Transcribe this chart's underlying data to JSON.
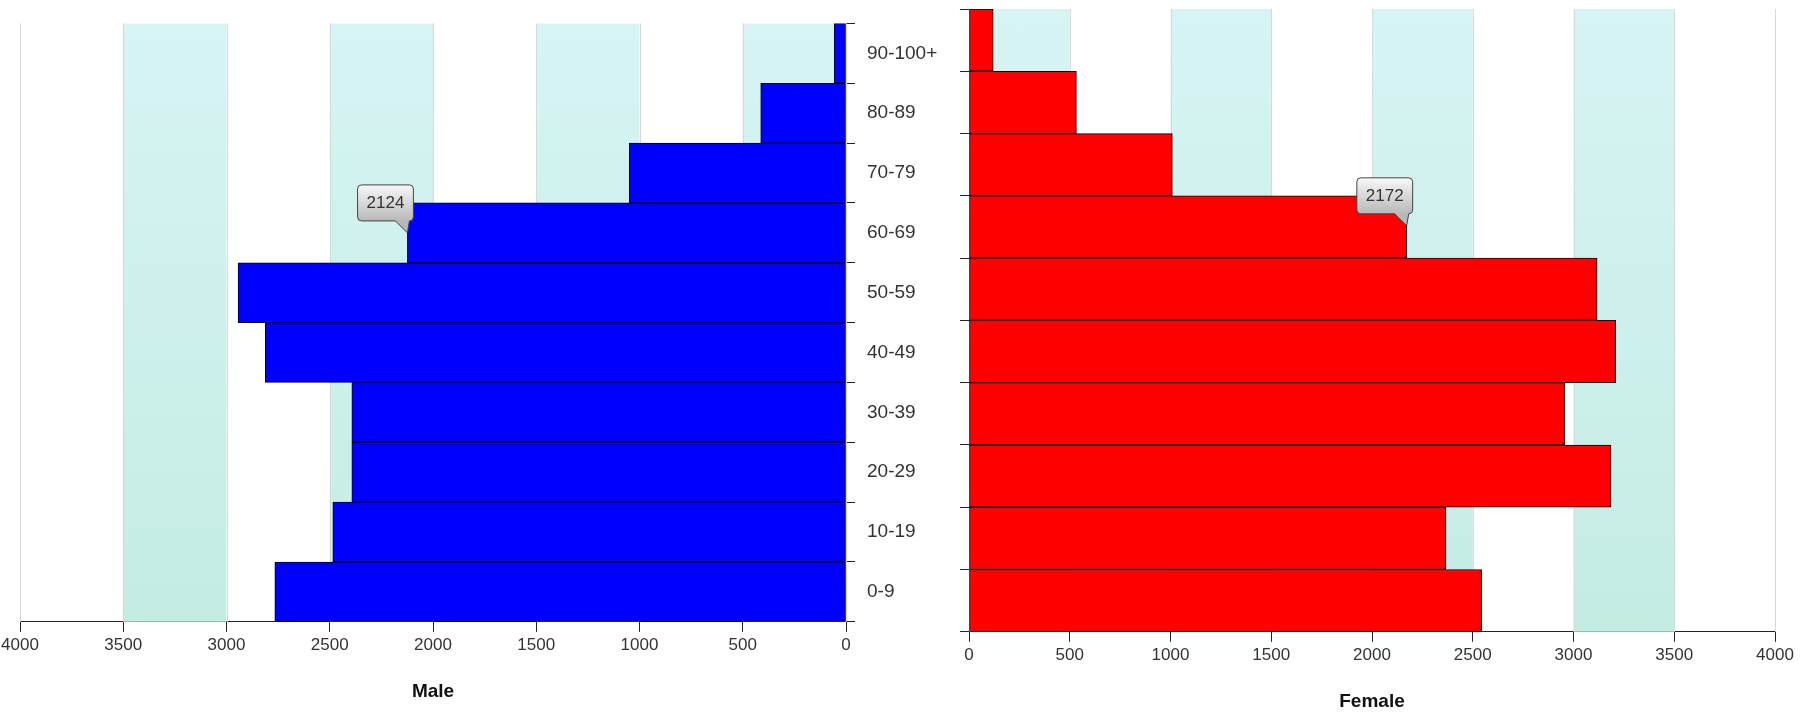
{
  "chart_data": [
    {
      "type": "bar",
      "orientation": "horizontal",
      "xlabel": "Male",
      "categories": [
        "90-100+",
        "80-89",
        "70-79",
        "60-69",
        "50-59",
        "40-49",
        "30-39",
        "20-29",
        "10-19",
        "0-9"
      ],
      "values": [
        57,
        413,
        1050,
        2124,
        2944,
        2812,
        2393,
        2393,
        2485,
        2766
      ],
      "color": "#0000ff",
      "xlim": [
        4000,
        0
      ],
      "xticks": [
        0,
        500,
        1000,
        1500,
        2000,
        2500,
        3000,
        3500,
        4000
      ],
      "grid": "x",
      "legend": false,
      "bands": [
        {
          "axis": "x",
          "from": 0,
          "to": 500,
          "color": "#c4ece3"
        },
        {
          "axis": "x",
          "from": 1000,
          "to": 1500,
          "color": "#c4ece3"
        },
        {
          "axis": "x",
          "from": 2000,
          "to": 2500,
          "color": "#c4ece3"
        },
        {
          "axis": "x",
          "from": 3000,
          "to": 3500,
          "color": "#c4ece3"
        }
      ],
      "annotations": [
        {
          "text": "2124",
          "x": 2124,
          "y": "60-69"
        }
      ]
    },
    {
      "type": "bar",
      "orientation": "horizontal",
      "xlabel": "Female",
      "categories": [
        "90-100+",
        "80-89",
        "70-79",
        "60-69",
        "50-59",
        "40-49",
        "30-39",
        "20-29",
        "10-19",
        "0-9"
      ],
      "values": [
        120,
        533,
        1009,
        2172,
        3117,
        3209,
        2957,
        3186,
        2367,
        2544
      ],
      "color": "#ff0000",
      "xlim": [
        0,
        4000
      ],
      "xticks": [
        0,
        500,
        1000,
        1500,
        2000,
        2500,
        3000,
        3500,
        4000
      ],
      "grid": "x",
      "legend": false,
      "tick_labels": "x",
      "bands": [
        {
          "axis": "x",
          "from": 0,
          "to": 500,
          "color": "#c4ece3"
        },
        {
          "axis": "x",
          "from": 1000,
          "to": 1500,
          "color": "#c4ece3"
        },
        {
          "axis": "x",
          "from": 2000,
          "to": 2500,
          "color": "#c4ece3"
        },
        {
          "axis": "x",
          "from": 3000,
          "to": 3500,
          "color": "#c4ece3"
        }
      ],
      "annotations": [
        {
          "text": "2172",
          "x": 2172,
          "y": "60-69"
        }
      ]
    }
  ]
}
